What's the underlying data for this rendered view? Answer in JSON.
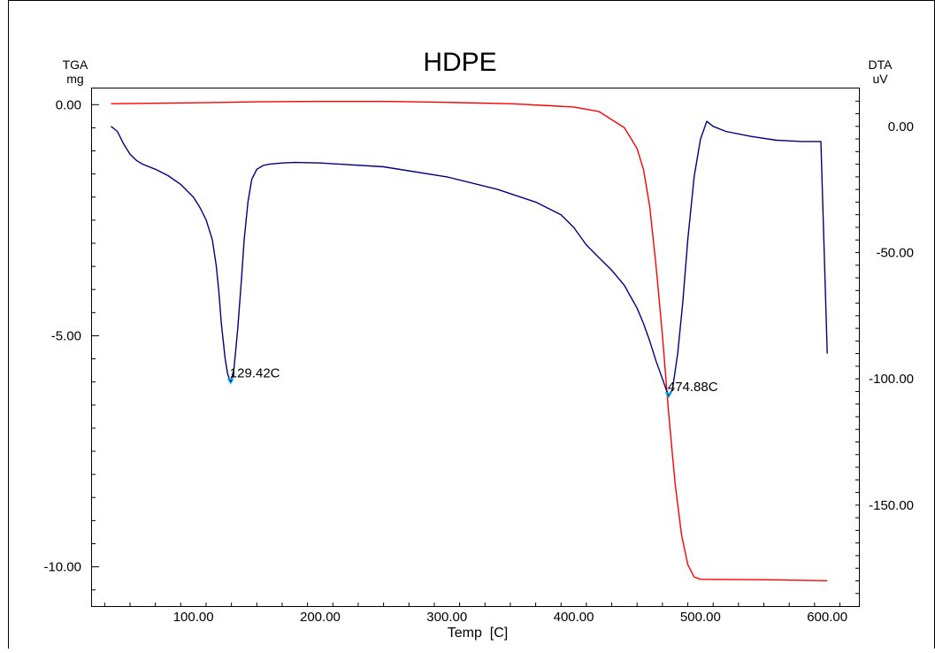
{
  "chart_data": {
    "type": "line",
    "title": "HDPE",
    "xlabel": "Temp  [C]",
    "ylabel_left": [
      "TGA",
      "mg"
    ],
    "ylabel_right": [
      "DTA",
      "uV"
    ],
    "xlim": [
      20,
      625
    ],
    "ylim_left": [
      -10.85,
      0.35
    ],
    "ylim_right": [
      -190,
      15
    ],
    "x_ticks": [
      {
        "value": 100,
        "label": "100.00"
      },
      {
        "value": 200,
        "label": "200.00"
      },
      {
        "value": 300,
        "label": "300.00"
      },
      {
        "value": 400,
        "label": "400.00"
      },
      {
        "value": 500,
        "label": "500.00"
      },
      {
        "value": 600,
        "label": "600.00"
      }
    ],
    "y_left_ticks": [
      {
        "value": 0,
        "label": "0.00"
      },
      {
        "value": -5,
        "label": "-5.00"
      },
      {
        "value": -10,
        "label": "-10.00"
      }
    ],
    "y_right_ticks": [
      {
        "value": 0,
        "label": "0.00"
      },
      {
        "value": -50,
        "label": "-50.00"
      },
      {
        "value": -100,
        "label": "-100.00"
      },
      {
        "value": -150,
        "label": "-150.00"
      }
    ],
    "series": [
      {
        "axis": "left",
        "color": "#ff0000",
        "x": [
          35,
          100,
          150,
          200,
          250,
          300,
          350,
          400,
          420,
          440,
          450,
          455,
          460,
          465,
          470,
          475,
          480,
          485,
          490,
          495,
          500,
          550,
          600
        ],
        "y": [
          0.02,
          0.04,
          0.06,
          0.07,
          0.07,
          0.05,
          0.02,
          -0.05,
          -0.15,
          -0.5,
          -0.95,
          -1.4,
          -2.2,
          -3.5,
          -5.0,
          -6.7,
          -8.2,
          -9.3,
          -9.95,
          -10.22,
          -10.27,
          -10.28,
          -10.3
        ]
      },
      {
        "axis": "right",
        "color": "#000080",
        "x": [
          35,
          40,
          45,
          50,
          55,
          60,
          70,
          80,
          90,
          100,
          105,
          110,
          115,
          118,
          120,
          122,
          125,
          127,
          129.42,
          132,
          135,
          138,
          140,
          143,
          146,
          150,
          155,
          160,
          170,
          180,
          200,
          250,
          300,
          340,
          370,
          390,
          400,
          410,
          420,
          430,
          440,
          450,
          455,
          460,
          465,
          470,
          474.88,
          478,
          482,
          486,
          490,
          495,
          500,
          505,
          510,
          520,
          540,
          560,
          580,
          595,
          600
        ],
        "y": [
          0,
          -2,
          -7,
          -11,
          -13.5,
          -15,
          -17,
          -19.5,
          -23,
          -28,
          -32,
          -37,
          -45,
          -55,
          -65,
          -78,
          -92,
          -98,
          -101.5,
          -96,
          -80,
          -60,
          -45,
          -30,
          -21,
          -17,
          -15.5,
          -15,
          -14.5,
          -14.3,
          -14.5,
          -16,
          -20,
          -25,
          -30,
          -35,
          -40,
          -47,
          -52,
          -57,
          -63,
          -72,
          -78,
          -85,
          -93,
          -100,
          -107,
          -104,
          -90,
          -70,
          -45,
          -20,
          -5,
          2,
          0,
          -2,
          -4,
          -5.5,
          -6,
          -6,
          -90
        ]
      }
    ],
    "annotations": [
      {
        "x": 129.42,
        "axis": "right",
        "y": -101.5,
        "label": "129.42C"
      },
      {
        "x": 474.88,
        "axis": "right",
        "y": -107,
        "label": "474.88C"
      }
    ],
    "grid": false,
    "marker_color": "#00c0ff"
  }
}
